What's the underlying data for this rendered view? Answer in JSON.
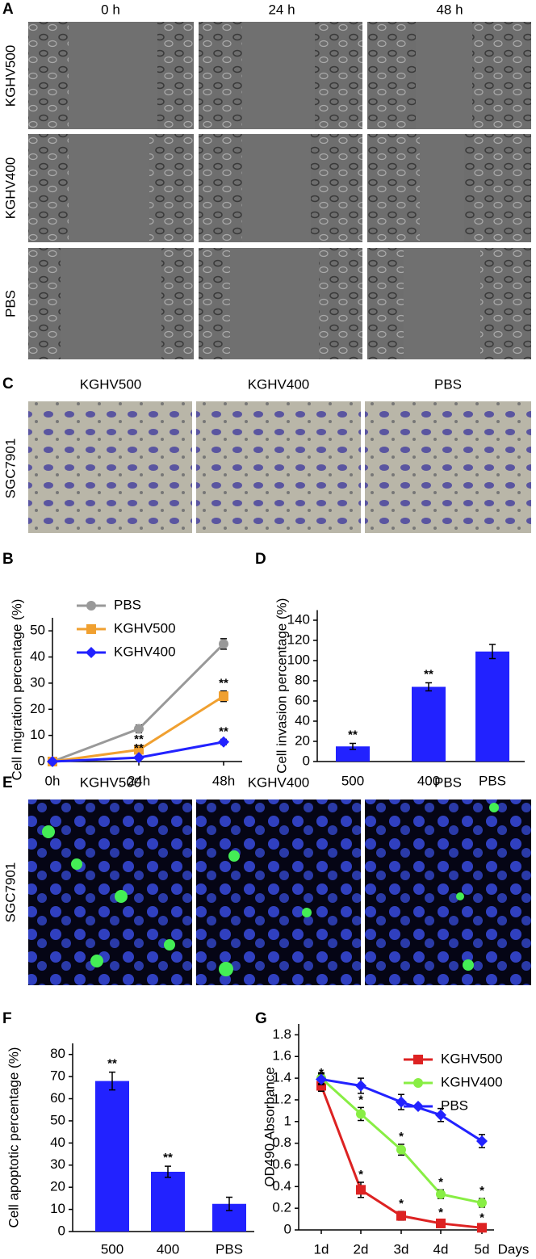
{
  "panels": {
    "A": {
      "letter": "A",
      "columns": [
        "0 h",
        "24 h",
        "48 h"
      ],
      "rows": [
        "KGHV500",
        "KGHV400",
        "PBS"
      ]
    },
    "C": {
      "letter": "C",
      "columns": [
        "KGHV500",
        "KGHV400",
        "PBS"
      ],
      "row": "SGC7901"
    },
    "E": {
      "letter": "E",
      "columns": [
        "KGHV500",
        "KGHV400",
        "PBS"
      ],
      "row": "SGC7901"
    }
  },
  "chart_data": [
    {
      "type": "line",
      "panel": "B",
      "ylabel": "Cell migration percentage (%)",
      "categories": [
        "0h",
        "24h",
        "48h"
      ],
      "ylim": [
        0,
        55
      ],
      "yticks": [
        0,
        10,
        20,
        30,
        40,
        50
      ],
      "legend": "upper left",
      "series": [
        {
          "name": "PBS",
          "color": "#999999",
          "marker": "circle",
          "values": [
            0,
            12.5,
            45
          ],
          "errors": [
            0,
            1.5,
            2
          ],
          "annotations": [
            null,
            null,
            null
          ]
        },
        {
          "name": "KGHV500",
          "color": "#f0a030",
          "marker": "square",
          "values": [
            0,
            4.5,
            25
          ],
          "errors": [
            0,
            1,
            2
          ],
          "annotations": [
            null,
            "**",
            "**"
          ]
        },
        {
          "name": "KGHV400",
          "color": "#2222ff",
          "marker": "diamond",
          "values": [
            0,
            1.5,
            7.5
          ],
          "errors": [
            0,
            0.6,
            1
          ],
          "annotations": [
            null,
            "**",
            "**"
          ]
        }
      ]
    },
    {
      "type": "bar",
      "panel": "D",
      "ylabel": "Cell invasion percentage (%)",
      "color": "#2222ff",
      "categories": [
        "500",
        "400",
        "PBS"
      ],
      "values": [
        15,
        74,
        109
      ],
      "errors": [
        3,
        4,
        7
      ],
      "annotations": [
        "**",
        "**",
        null
      ],
      "ylim": [
        0,
        150
      ],
      "yticks": [
        0,
        20,
        40,
        60,
        80,
        100,
        120,
        140
      ]
    },
    {
      "type": "bar",
      "panel": "F",
      "ylabel": "Cell apoptotic percentage (%)",
      "color": "#2222ff",
      "categories": [
        "500",
        "400",
        "PBS"
      ],
      "values": [
        68,
        27,
        12.5
      ],
      "errors": [
        4,
        2.5,
        3
      ],
      "annotations": [
        "**",
        "**",
        null
      ],
      "ylim": [
        0,
        85
      ],
      "yticks": [
        0,
        10,
        20,
        30,
        40,
        50,
        60,
        70,
        80
      ]
    },
    {
      "type": "line",
      "panel": "G",
      "ylabel": "OD490 Absorbance",
      "xlabel": "Days",
      "categories": [
        "1d",
        "2d",
        "3d",
        "4d",
        "5d"
      ],
      "ylim": [
        0,
        1.9
      ],
      "yticks": [
        0,
        0.2,
        0.4,
        0.6,
        0.8,
        1,
        1.2,
        1.4,
        1.6,
        1.8
      ],
      "legend": "upper right",
      "series": [
        {
          "name": "KGHV500",
          "color": "#dd2222",
          "marker": "square",
          "values": [
            1.33,
            0.37,
            0.13,
            0.06,
            0.02
          ],
          "errors": [
            0.05,
            0.07,
            0.04,
            0.03,
            0.02
          ],
          "annotations": [
            "*",
            "*",
            "*",
            "*",
            "*"
          ]
        },
        {
          "name": "KGHV400",
          "color": "#88ee44",
          "marker": "circle",
          "values": [
            1.4,
            1.07,
            0.74,
            0.33,
            0.25
          ],
          "errors": [
            0.05,
            0.06,
            0.05,
            0.04,
            0.04
          ],
          "annotations": [
            null,
            "*",
            "*",
            "*",
            "*"
          ]
        },
        {
          "name": "PBS",
          "color": "#2222ff",
          "marker": "diamond",
          "values": [
            1.39,
            1.33,
            1.18,
            1.06,
            0.82
          ],
          "errors": [
            0.05,
            0.07,
            0.07,
            0.06,
            0.06
          ],
          "annotations": [
            null,
            null,
            null,
            null,
            null
          ]
        }
      ]
    }
  ]
}
